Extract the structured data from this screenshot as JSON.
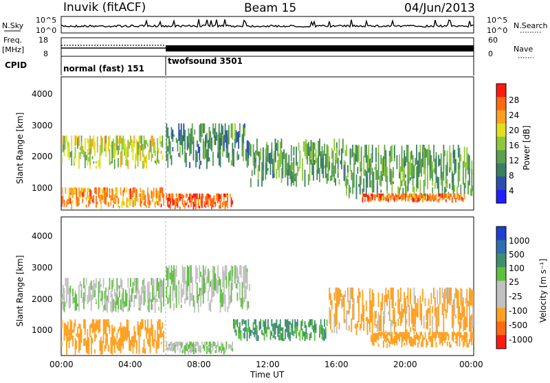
{
  "header": {
    "station": "Inuvik (fitACF)",
    "beam": "Beam 15",
    "date": "04/Jun/2013"
  },
  "noise_panel": {
    "left_label": "N.Sky",
    "right_label": "N.Search",
    "left_ticks": [
      "10^5",
      "10^0"
    ],
    "right_ticks": [
      "10^5",
      "10^0"
    ]
  },
  "freq_panel": {
    "left_label_line1": "Freq.",
    "left_label_line2": "[MHz]",
    "right_label": "Nave",
    "left_ticks": [
      "18",
      "8"
    ],
    "right_ticks": [
      "60",
      "0"
    ]
  },
  "cpid_panel": {
    "label": "CPID",
    "modes": [
      "normal (fast) 151",
      "twofsound 3501"
    ]
  },
  "power_panel": {
    "ylabel": "Slant Range [km]",
    "yticks": [
      "4000",
      "3000",
      "2000",
      "1000"
    ],
    "colorbar_label": "Power [dB]",
    "colorbar_ticks": [
      "28",
      "24",
      "20",
      "16",
      "12",
      "8",
      "4"
    ],
    "colors": [
      "#1f1fff",
      "#2b4fb0",
      "#3a7f60",
      "#5aa050",
      "#8fc83a",
      "#e0e020",
      "#ffa020",
      "#ff6a10",
      "#ff1a10"
    ]
  },
  "velocity_panel": {
    "ylabel": "Slant Range [km]",
    "yticks": [
      "4000",
      "3000",
      "2000",
      "1000"
    ],
    "colorbar_label": "Velocity [m s⁻¹]",
    "colorbar_ticks": [
      "1000",
      "500",
      "100",
      "25",
      "-25",
      "-100",
      "-500",
      "-1000"
    ],
    "colors": [
      "#1f3fcf",
      "#2f6fb0",
      "#3f8f6f",
      "#5fc040",
      "#c0c0c0",
      "#c0c0c0",
      "#ffa020",
      "#ff6a10",
      "#ff1a10"
    ]
  },
  "x_axis": {
    "ticks": [
      "00:00",
      "04:00",
      "08:00",
      "12:00",
      "16:00",
      "20:00",
      "00:00"
    ],
    "label": "Time UT"
  },
  "chart_data": {
    "type": "heatmap",
    "title": "Inuvik (fitACF) Beam 15 04/Jun/2013",
    "xlabel": "Time UT",
    "ylabel": "Slant Range [km]",
    "x_range_hours": [
      0,
      24
    ],
    "y_range_km": [
      180,
      4500
    ],
    "mode_change_hour": 6.1,
    "panels": [
      {
        "name": "Power [dB]",
        "colorbar_range": [
          0,
          32
        ],
        "regions": [
          {
            "t0": 0.0,
            "t1": 6.0,
            "r0": 1500,
            "r1": 2600,
            "value": 18
          },
          {
            "t0": 0.0,
            "t1": 6.0,
            "r0": 180,
            "r1": 900,
            "value": 24
          },
          {
            "t0": 6.1,
            "t1": 10.0,
            "r0": 180,
            "r1": 700,
            "value": 28
          },
          {
            "t0": 6.1,
            "t1": 11.0,
            "r0": 1500,
            "r1": 3000,
            "value": 10
          },
          {
            "t0": 11.0,
            "t1": 16.5,
            "r0": 900,
            "r1": 2500,
            "value": 12
          },
          {
            "t0": 16.5,
            "t1": 24.0,
            "r0": 500,
            "r1": 2300,
            "value": 12
          },
          {
            "t0": 17.5,
            "t1": 23.5,
            "r0": 400,
            "r1": 700,
            "value": 26
          }
        ]
      },
      {
        "name": "Velocity [m s^-1]",
        "colorbar_ticks": [
          1000,
          500,
          100,
          25,
          -25,
          -100,
          -500,
          -1000
        ],
        "regions": [
          {
            "t0": 0.0,
            "t1": 6.0,
            "r0": 1500,
            "r1": 2600,
            "value": 0
          },
          {
            "t0": 0.0,
            "t1": 6.0,
            "r0": 180,
            "r1": 1300,
            "value": -300
          },
          {
            "t0": 6.1,
            "t1": 10.0,
            "r0": 180,
            "r1": 600,
            "value": 0
          },
          {
            "t0": 6.1,
            "t1": 11.0,
            "r0": 1500,
            "r1": 3000,
            "value": 0
          },
          {
            "t0": 10.0,
            "t1": 15.5,
            "r0": 600,
            "r1": 1300,
            "value": 120
          },
          {
            "t0": 15.5,
            "t1": 24.0,
            "r0": 800,
            "r1": 2300,
            "value": -150
          },
          {
            "t0": 18.0,
            "t1": 24.0,
            "r0": 400,
            "r1": 900,
            "value": -200
          }
        ]
      }
    ]
  }
}
